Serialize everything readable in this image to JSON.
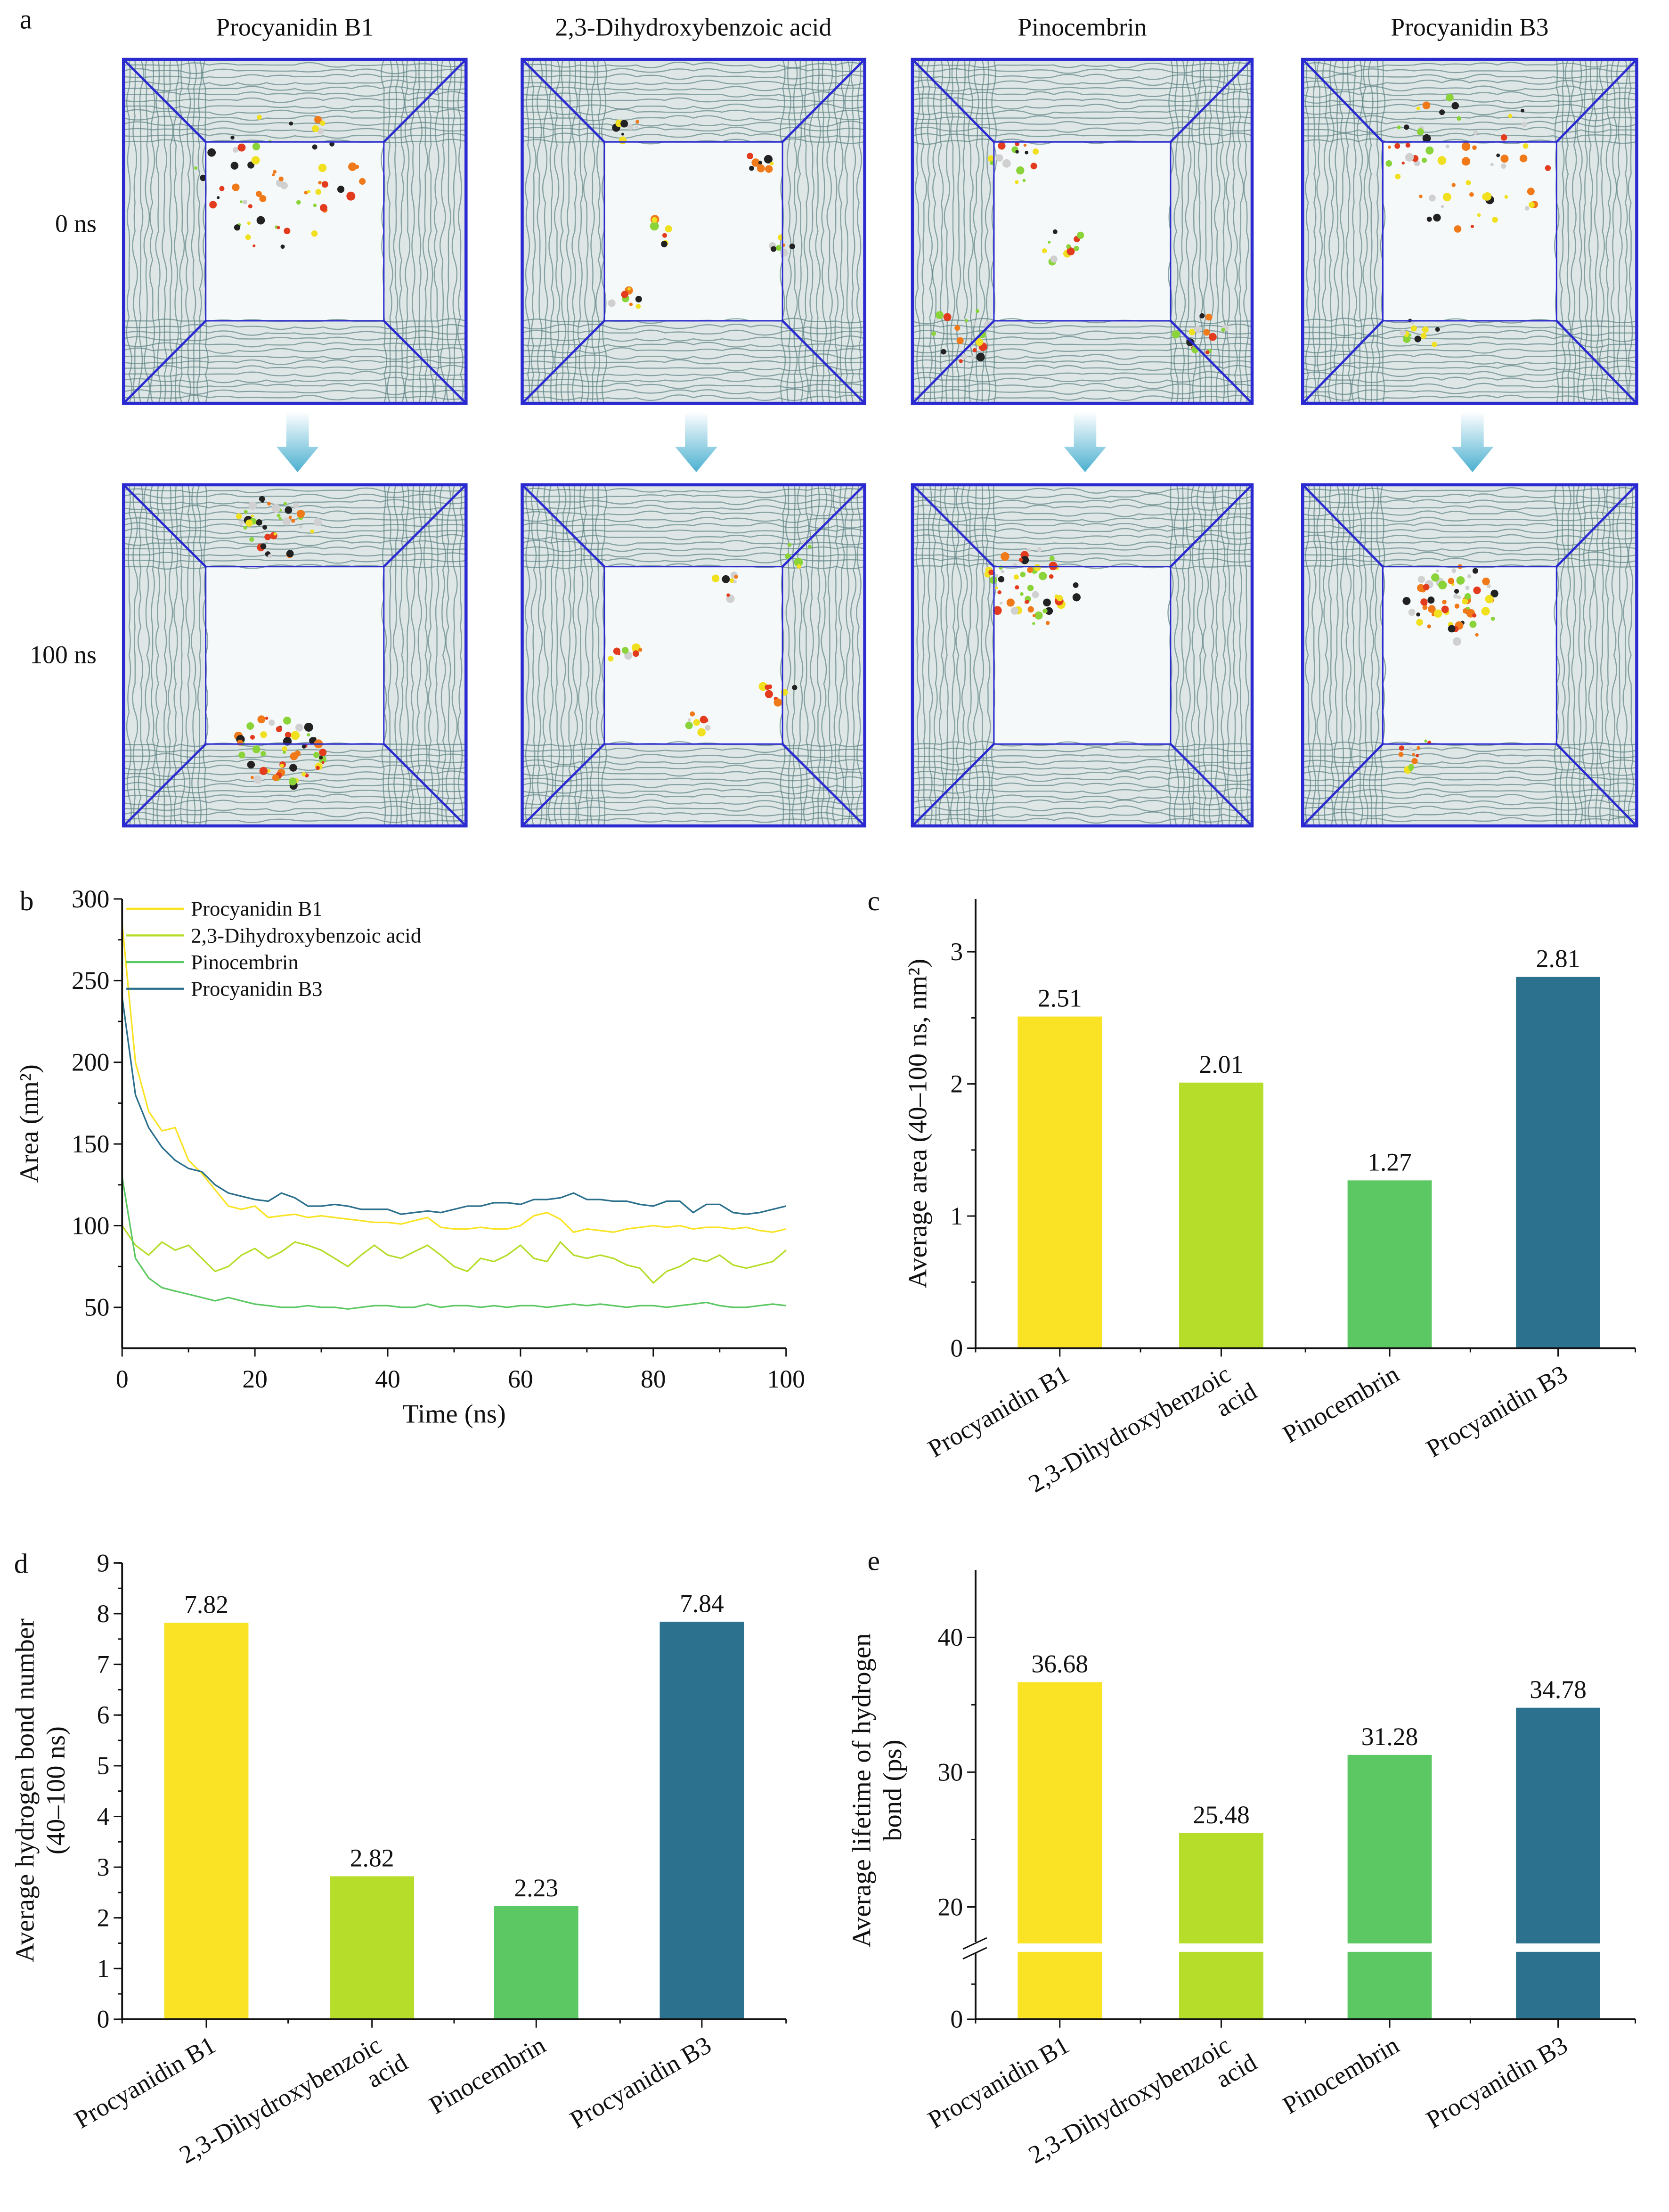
{
  "panel_a": {
    "letter": "a",
    "columns": [
      "Procyanidin B1",
      "2,3-Dihydroxybenzoic acid",
      "Pinocembrin",
      "Procyanidin B3"
    ],
    "rows": [
      "0 ns",
      "100 ns"
    ],
    "box_frame_color": "#2a2ad0",
    "arrow_color": "#4bb0d0"
  },
  "chart_data": [
    {
      "panel": "b",
      "type": "line",
      "xlabel": "Time (ns)",
      "ylabel": "Area (nm²)",
      "xlim": [
        0,
        100
      ],
      "ylim": [
        25,
        300
      ],
      "xticks": [
        0,
        20,
        40,
        60,
        80,
        100
      ],
      "yticks": [
        50,
        100,
        150,
        200,
        250,
        300
      ],
      "legend_position": "top-left",
      "grid": false,
      "x": [
        0,
        2,
        4,
        6,
        8,
        10,
        12,
        14,
        16,
        18,
        20,
        22,
        24,
        26,
        28,
        30,
        32,
        34,
        36,
        38,
        40,
        42,
        44,
        46,
        48,
        50,
        52,
        54,
        56,
        58,
        60,
        62,
        64,
        66,
        68,
        70,
        72,
        74,
        76,
        78,
        80,
        82,
        84,
        86,
        88,
        90,
        92,
        94,
        96,
        98,
        100
      ],
      "series": [
        {
          "name": "Procyanidin B1",
          "color": "#fae325",
          "values": [
            285,
            200,
            170,
            158,
            160,
            140,
            132,
            122,
            112,
            110,
            112,
            105,
            106,
            107,
            105,
            106,
            105,
            104,
            103,
            102,
            102,
            101,
            103,
            105,
            99,
            98,
            98,
            99,
            98,
            98,
            100,
            106,
            108,
            104,
            96,
            98,
            97,
            96,
            98,
            99,
            100,
            99,
            100,
            98,
            99,
            99,
            98,
            99,
            97,
            96,
            98
          ]
        },
        {
          "name": "2,3-Dihydroxybenzoic acid",
          "color": "#b5dd2a",
          "values": [
            100,
            88,
            82,
            90,
            85,
            88,
            80,
            72,
            75,
            82,
            86,
            80,
            84,
            90,
            88,
            85,
            80,
            75,
            82,
            88,
            82,
            80,
            84,
            88,
            82,
            75,
            72,
            80,
            78,
            82,
            88,
            80,
            78,
            90,
            82,
            80,
            82,
            80,
            76,
            74,
            65,
            72,
            75,
            80,
            78,
            82,
            76,
            74,
            76,
            78,
            85
          ]
        },
        {
          "name": "Pinocembrin",
          "color": "#5cc863",
          "values": [
            130,
            80,
            68,
            62,
            60,
            58,
            56,
            54,
            56,
            54,
            52,
            51,
            50,
            50,
            51,
            50,
            50,
            49,
            50,
            51,
            51,
            50,
            50,
            52,
            50,
            51,
            51,
            50,
            51,
            50,
            51,
            51,
            50,
            51,
            52,
            51,
            52,
            51,
            50,
            51,
            51,
            50,
            51,
            52,
            53,
            51,
            50,
            50,
            51,
            52,
            51
          ]
        },
        {
          "name": "Procyanidin B3",
          "color": "#2a6f8c",
          "values": [
            240,
            180,
            160,
            148,
            140,
            135,
            133,
            125,
            120,
            118,
            116,
            115,
            120,
            117,
            112,
            112,
            113,
            112,
            110,
            110,
            110,
            107,
            108,
            109,
            108,
            110,
            112,
            112,
            114,
            114,
            113,
            116,
            116,
            117,
            120,
            116,
            116,
            115,
            115,
            113,
            112,
            115,
            115,
            108,
            113,
            113,
            108,
            107,
            108,
            110,
            112
          ]
        }
      ]
    },
    {
      "panel": "c",
      "type": "bar",
      "ylabel": "Average area (40–100 ns, nm²)",
      "ylim": [
        0,
        3.4
      ],
      "yticks": [
        0,
        1,
        2,
        3
      ],
      "categories": [
        "Procyanidin B1",
        "2,3-Dihydroxybenzoic acid",
        "Pinocembrin",
        "Procyanidin B3"
      ],
      "values": [
        2.51,
        2.01,
        1.27,
        2.81
      ],
      "labels": [
        "2.51",
        "2.01",
        "1.27",
        "2.81"
      ],
      "colors": [
        "#fae325",
        "#b5dd2a",
        "#5cc863",
        "#2c728e"
      ]
    },
    {
      "panel": "d",
      "type": "bar",
      "ylabel": [
        "Average hydrogen bond number",
        "(40–100 ns)"
      ],
      "ylim": [
        0,
        9
      ],
      "yticks": [
        0,
        1,
        2,
        3,
        4,
        5,
        6,
        7,
        8,
        9
      ],
      "categories": [
        "Procyanidin B1",
        "2,3-Dihydroxybenzoic acid",
        "Pinocembrin",
        "Procyanidin B3"
      ],
      "values": [
        7.82,
        2.82,
        2.23,
        7.84
      ],
      "labels": [
        "7.82",
        "2.82",
        "2.23",
        "7.84"
      ],
      "colors": [
        "#fae325",
        "#b5dd2a",
        "#5cc863",
        "#2c728e"
      ]
    },
    {
      "panel": "e",
      "type": "bar",
      "ylabel": [
        "Average lifetime of hydrogen",
        "bond (ps)"
      ],
      "ylim": [
        0,
        45
      ],
      "axis_break": true,
      "yticks": [
        0,
        20,
        30,
        40
      ],
      "categories": [
        "Procyanidin B1",
        "2,3-Dihydroxybenzoic acid",
        "Pinocembrin",
        "Procyanidin B3"
      ],
      "values": [
        36.68,
        25.48,
        31.28,
        34.78
      ],
      "labels": [
        "36.68",
        "25.48",
        "31.28",
        "34.78"
      ],
      "colors": [
        "#fae325",
        "#b5dd2a",
        "#5cc863",
        "#2c728e"
      ]
    }
  ],
  "category_lines": [
    [
      "Procyanidin B1"
    ],
    [
      "2,3-Dihydroxybenzoic",
      "acid"
    ],
    [
      "Pinocembrin"
    ],
    [
      "Procyanidin B3"
    ]
  ]
}
